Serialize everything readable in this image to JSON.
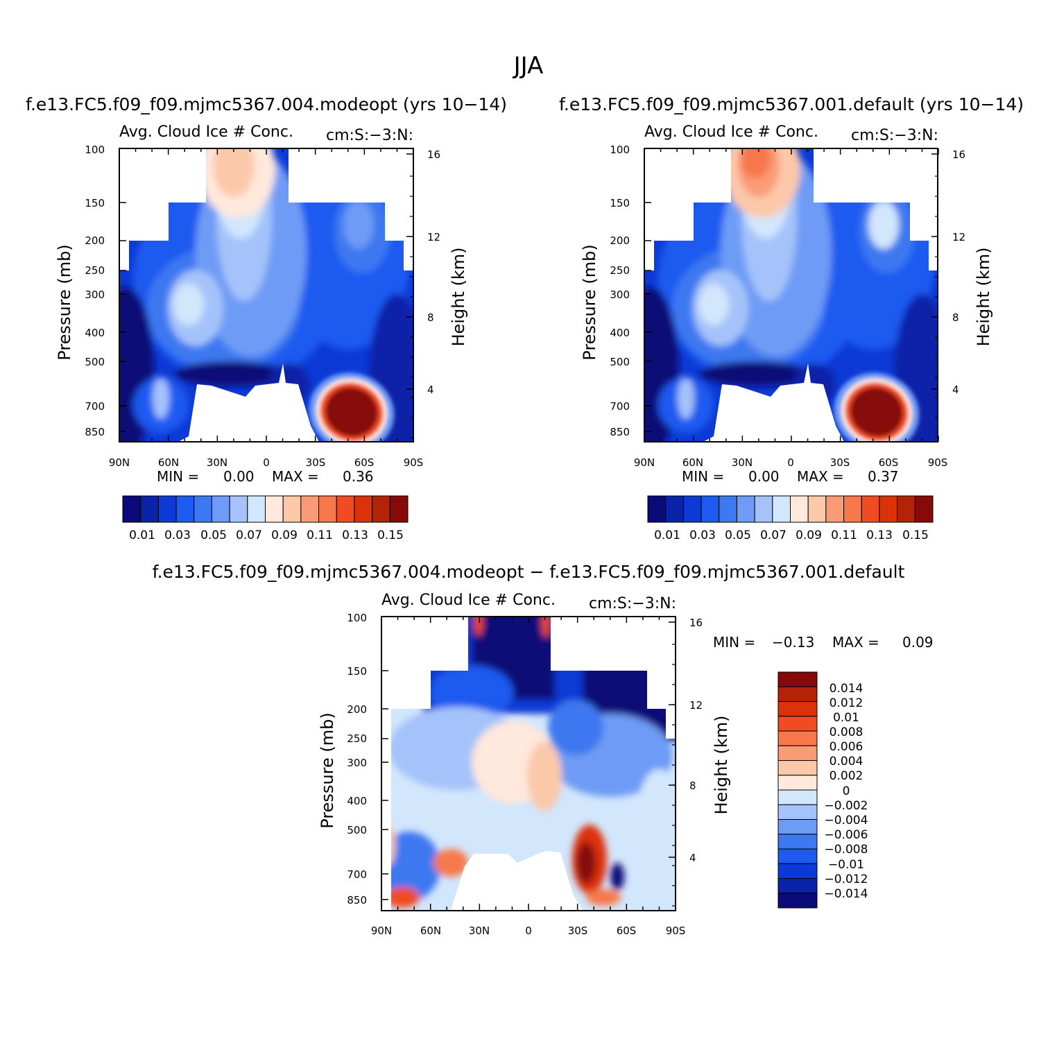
{
  "figure_title": "JJA",
  "colors": {
    "seq": [
      "#0a0a78",
      "#0a23a8",
      "#0d3ad6",
      "#1e5af0",
      "#3c78f0",
      "#6e9bf5",
      "#a5c3fa",
      "#d2e6fc",
      "#ffe8dc",
      "#fcc8aa",
      "#fa9b78",
      "#f7784b",
      "#f04b23",
      "#dc320a",
      "#b42308",
      "#870a0a"
    ],
    "diff": [
      "#0a0a78",
      "#0a23a8",
      "#0d3ad6",
      "#1e5af0",
      "#3c78f0",
      "#6e9bf5",
      "#a5c3fa",
      "#d2e6fc",
      "#ffe8dc",
      "#fcc8aa",
      "#fa9b78",
      "#f7784b",
      "#f04b23",
      "#dc320a",
      "#b42308",
      "#870a0a"
    ]
  },
  "chart_data": [
    {
      "type": "heatmap",
      "id": "modeopt",
      "title": "f.e13.FC5.f09_f09.mjmc5367.004.modeopt (yrs 10−14)",
      "left_label": "Avg. Cloud Ice # Conc.",
      "right_label": "cm:S:−3:N:",
      "ylabel": "Pressure (mb)",
      "y2label": "Height (km)",
      "xticks": [
        "90N",
        "60N",
        "30N",
        "0",
        "30S",
        "60S",
        "90S"
      ],
      "yticks": [
        100,
        150,
        200,
        250,
        300,
        400,
        500,
        700,
        850
      ],
      "yticks_values": [
        "100",
        "150",
        "200",
        "250",
        "300",
        "400",
        "500",
        "700",
        "850"
      ],
      "y2ticks": [
        "16",
        "12",
        "8",
        "4"
      ],
      "min_label": "MIN =",
      "min_value": "0.00",
      "max_label": "MAX =",
      "max_value": "0.36",
      "colorbar_labels": [
        "0.01",
        "0.03",
        "0.05",
        "0.07",
        "0.09",
        "0.11",
        "0.13",
        "0.15"
      ],
      "colorbar_levels": [
        0.01,
        0.02,
        0.03,
        0.04,
        0.05,
        0.06,
        0.07,
        0.08,
        0.09,
        0.1,
        0.11,
        0.12,
        0.13,
        0.14,
        0.15
      ],
      "upper_strength": 0.55
    },
    {
      "type": "heatmap",
      "id": "default",
      "title": "f.e13.FC5.f09_f09.mjmc5367.001.default (yrs 10−14)",
      "left_label": "Avg. Cloud Ice # Conc.",
      "right_label": "cm:S:−3:N:",
      "ylabel": "Pressure (mb)",
      "y2label": "Height (km)",
      "xticks": [
        "90N",
        "60N",
        "30N",
        "0",
        "30S",
        "60S",
        "90S"
      ],
      "yticks": [
        100,
        150,
        200,
        250,
        300,
        400,
        500,
        700,
        850
      ],
      "yticks_values": [
        "100",
        "150",
        "200",
        "250",
        "300",
        "400",
        "500",
        "700",
        "850"
      ],
      "y2ticks": [
        "16",
        "12",
        "8",
        "4"
      ],
      "min_label": "MIN =",
      "min_value": "0.00",
      "max_label": "MAX =",
      "max_value": "0.37",
      "colorbar_labels": [
        "0.01",
        "0.03",
        "0.05",
        "0.07",
        "0.09",
        "0.11",
        "0.13",
        "0.15"
      ],
      "colorbar_levels": [
        0.01,
        0.02,
        0.03,
        0.04,
        0.05,
        0.06,
        0.07,
        0.08,
        0.09,
        0.1,
        0.11,
        0.12,
        0.13,
        0.14,
        0.15
      ],
      "upper_strength": 0.85
    },
    {
      "type": "heatmap",
      "id": "difference",
      "title": "f.e13.FC5.f09_f09.mjmc5367.004.modeopt − f.e13.FC5.f09_f09.mjmc5367.001.default",
      "left_label": "Avg. Cloud Ice # Conc.",
      "right_label": "cm:S:−3:N:",
      "ylabel": "Pressure (mb)",
      "y2label": "Height (km)",
      "xticks": [
        "90N",
        "60N",
        "30N",
        "0",
        "30S",
        "60S",
        "90S"
      ],
      "yticks": [
        100,
        150,
        200,
        250,
        300,
        400,
        500,
        700,
        850
      ],
      "yticks_values": [
        "100",
        "150",
        "200",
        "250",
        "300",
        "400",
        "500",
        "700",
        "850"
      ],
      "y2ticks": [
        "16",
        "12",
        "8",
        "4"
      ],
      "min_label": "MIN =",
      "min_value": "−0.13",
      "max_label": "MAX =",
      "max_value": "0.09",
      "colorbar_labels": [
        "0.014",
        "0.012",
        "0.01",
        "0.008",
        "0.006",
        "0.004",
        "0.002",
        "0",
        "−0.002",
        "−0.004",
        "−0.006",
        "−0.008",
        "−0.01",
        "−0.012",
        "−0.014"
      ],
      "colorbar_levels": [
        -0.014,
        -0.012,
        -0.01,
        -0.008,
        -0.006,
        -0.004,
        -0.002,
        0,
        0.002,
        0.004,
        0.006,
        0.008,
        0.01,
        0.012,
        0.014
      ]
    }
  ]
}
